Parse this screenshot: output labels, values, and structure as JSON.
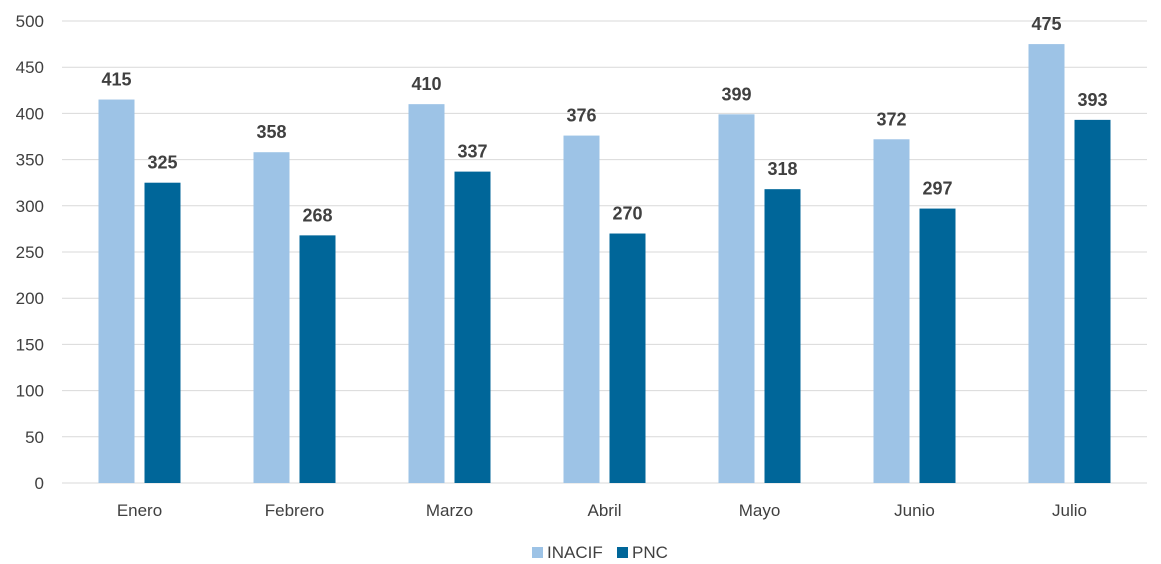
{
  "chart_data": {
    "type": "bar",
    "title": "",
    "xlabel": "",
    "ylabel": "",
    "categories": [
      "Enero",
      "Febrero",
      "Marzo",
      "Abril",
      "Mayo",
      "Junio",
      "Julio"
    ],
    "series": [
      {
        "name": "INACIF",
        "color": "#9dc3e6",
        "values": [
          415,
          358,
          410,
          376,
          399,
          372,
          475
        ]
      },
      {
        "name": "PNC",
        "color": "#006699",
        "values": [
          325,
          268,
          337,
          270,
          318,
          297,
          393
        ]
      }
    ],
    "ylim": [
      0,
      500
    ],
    "yticks": [
      0,
      50,
      100,
      150,
      200,
      250,
      300,
      350,
      400,
      450,
      500
    ],
    "grid": true,
    "legend_position": "bottom-center",
    "data_labels": true
  }
}
